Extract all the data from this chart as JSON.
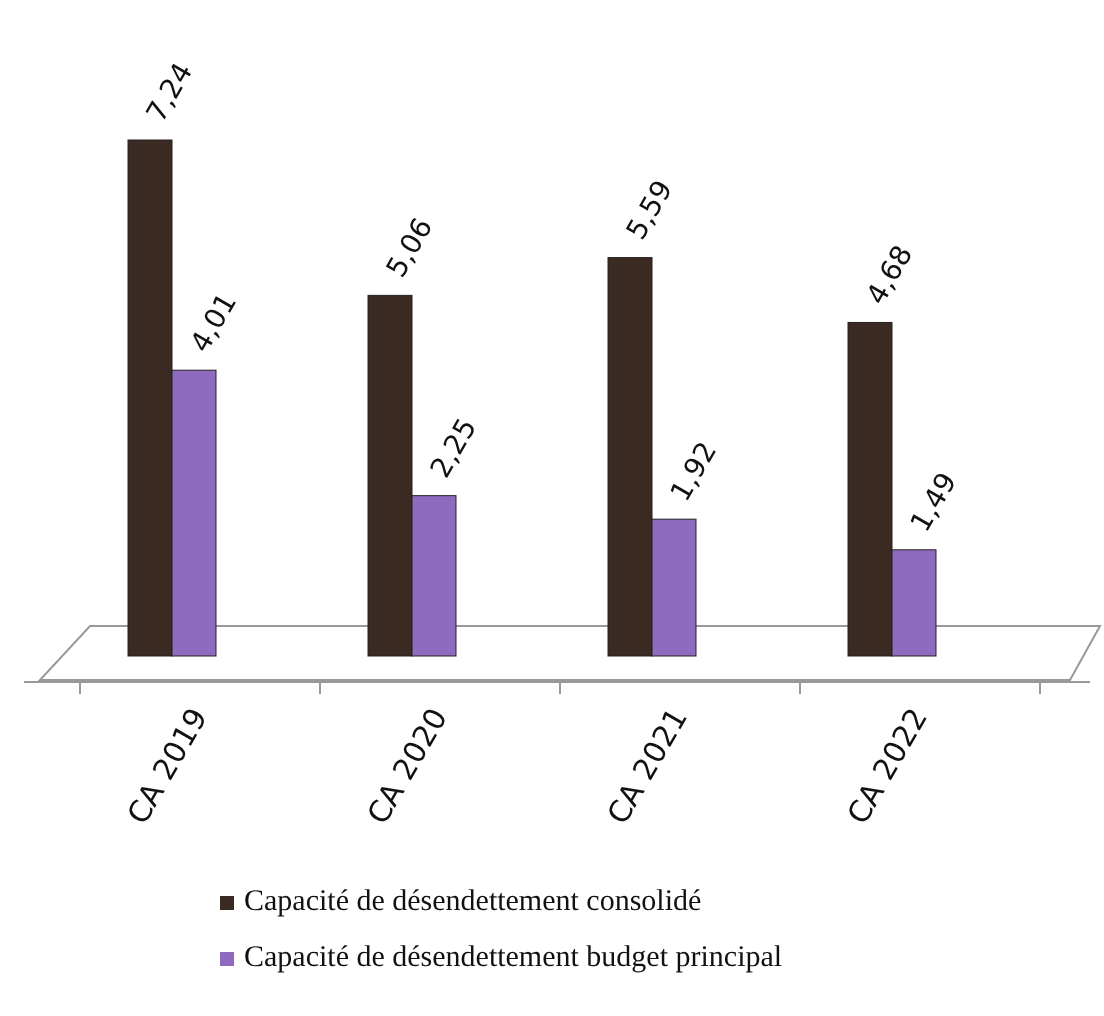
{
  "chart_data": {
    "type": "bar",
    "categories": [
      "CA 2019",
      "CA 2020",
      "CA 2021",
      "CA 2022"
    ],
    "series": [
      {
        "name": "Capacité de désendettement  consolidé",
        "color": "#3b2a22",
        "values": [
          7.24,
          5.06,
          5.59,
          4.68
        ],
        "value_labels": [
          "7,24",
          "5,06",
          "5,59",
          "4,68"
        ]
      },
      {
        "name": "Capacité de désendettement  budget principal",
        "color": "#8e6bbf",
        "values": [
          4.01,
          2.25,
          1.92,
          1.49
        ],
        "value_labels": [
          "4,01",
          "2,25",
          "1,92",
          "1,49"
        ]
      }
    ],
    "legend": "bottom"
  }
}
